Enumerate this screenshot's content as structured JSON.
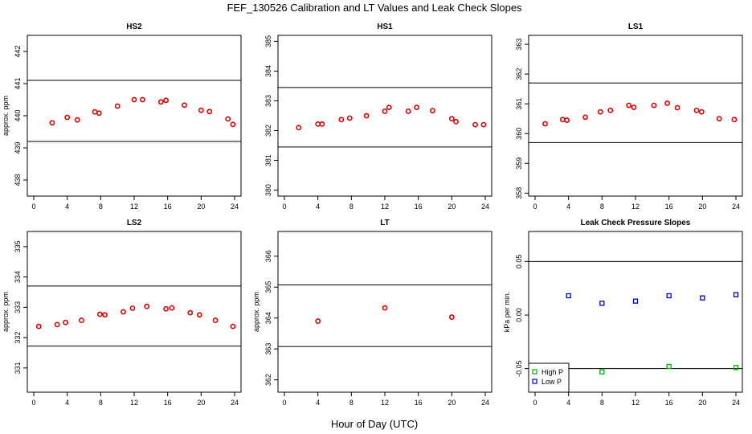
{
  "title": "FEF_130526  Calibration and LT Values and Leak Check Slopes",
  "xlabel": "Hour of Day (UTC)",
  "colors": {
    "point": "#e00000",
    "high_p": "#00b400",
    "low_p": "#0000cc",
    "axis": "#000000"
  },
  "chart_data": [
    {
      "type": "scatter",
      "title": "HS2",
      "ylabel": "approx. ppm",
      "xlim": [
        0,
        24
      ],
      "xticks": [
        0,
        4,
        8,
        12,
        16,
        20,
        24
      ],
      "ylim": [
        437.5,
        442.5
      ],
      "yticks": [
        438,
        439,
        440,
        441,
        442
      ],
      "hlines": [
        441.1,
        439.2
      ],
      "series": [
        {
          "x": [
            2.2,
            4.0,
            5.2,
            7.3,
            7.8,
            10.0,
            12.0,
            13.0,
            15.2,
            15.8,
            18.0,
            20.0,
            21.0,
            23.2,
            23.8
          ],
          "y": [
            439.78,
            439.95,
            439.87,
            440.12,
            440.08,
            440.3,
            440.5,
            440.5,
            440.43,
            440.48,
            440.33,
            440.17,
            440.13,
            439.9,
            439.73
          ]
        }
      ]
    },
    {
      "type": "scatter",
      "title": "HS1",
      "ylabel": "",
      "xlim": [
        0,
        24
      ],
      "xticks": [
        0,
        4,
        8,
        12,
        16,
        20,
        24
      ],
      "ylim": [
        379.8,
        385.2
      ],
      "yticks": [
        380,
        381,
        382,
        383,
        384,
        385
      ],
      "hlines": [
        383.45,
        381.45
      ],
      "series": [
        {
          "x": [
            1.7,
            4.0,
            4.5,
            6.8,
            7.8,
            9.8,
            12.0,
            12.5,
            14.8,
            15.8,
            17.7,
            20.0,
            20.5,
            22.8,
            23.8
          ],
          "y": [
            382.1,
            382.22,
            382.22,
            382.37,
            382.42,
            382.5,
            382.65,
            382.78,
            382.65,
            382.78,
            382.67,
            382.4,
            382.3,
            382.2,
            382.2
          ]
        }
      ]
    },
    {
      "type": "scatter",
      "title": "LS1",
      "ylabel": "",
      "xlim": [
        0,
        24
      ],
      "xticks": [
        0,
        4,
        8,
        12,
        16,
        20,
        24
      ],
      "ylim": [
        357.9,
        363.3
      ],
      "yticks": [
        358,
        359,
        360,
        361,
        362,
        363
      ],
      "hlines": [
        361.7,
        359.7
      ],
      "series": [
        {
          "x": [
            1.2,
            3.3,
            3.8,
            6.0,
            7.8,
            9.0,
            11.2,
            11.8,
            14.2,
            15.8,
            17.0,
            19.3,
            19.9,
            22.0,
            23.8
          ],
          "y": [
            360.33,
            360.47,
            360.45,
            360.55,
            360.73,
            360.78,
            360.95,
            360.88,
            360.95,
            361.02,
            360.87,
            360.78,
            360.73,
            360.5,
            360.47
          ]
        }
      ]
    },
    {
      "type": "scatter",
      "title": "LS2",
      "ylabel": "approx. ppm",
      "xlim": [
        0,
        24
      ],
      "xticks": [
        0,
        4,
        8,
        12,
        16,
        20,
        24
      ],
      "ylim": [
        330.2,
        335.5
      ],
      "yticks": [
        331,
        332,
        333,
        334,
        335
      ],
      "hlines": [
        333.7,
        331.72
      ],
      "series": [
        {
          "x": [
            0.6,
            2.8,
            3.8,
            5.7,
            7.9,
            8.5,
            10.7,
            11.8,
            13.5,
            15.8,
            16.5,
            18.7,
            19.8,
            21.7,
            23.8
          ],
          "y": [
            332.37,
            332.43,
            332.5,
            332.57,
            332.77,
            332.75,
            332.85,
            332.97,
            333.03,
            332.95,
            332.98,
            332.82,
            332.75,
            332.57,
            332.37
          ]
        }
      ]
    },
    {
      "type": "scatter",
      "title": "LT",
      "ylabel": "approx. ppm",
      "xlim": [
        0,
        24
      ],
      "xticks": [
        0,
        4,
        8,
        12,
        16,
        20,
        24
      ],
      "ylim": [
        361.6,
        366.8
      ],
      "yticks": [
        362,
        363,
        364,
        365,
        366
      ],
      "hlines": [
        365.07,
        363.08
      ],
      "series": [
        {
          "x": [
            4.0,
            12.0,
            20.0
          ],
          "y": [
            363.9,
            364.33,
            364.03
          ]
        }
      ]
    },
    {
      "type": "scatter",
      "title": "Leak Check Pressure Slopes",
      "ylabel": "kPa per min.",
      "xlim": [
        0,
        24
      ],
      "xticks": [
        0,
        4,
        8,
        12,
        16,
        20,
        24
      ],
      "ylim": [
        -0.072,
        0.078
      ],
      "yticks": [
        -0.05,
        0.0,
        0.05
      ],
      "ytick_labels": [
        "-0.05",
        "0.00",
        "0.05"
      ],
      "hlines": [
        0.05,
        -0.05
      ],
      "legend_position": "bottom-left",
      "series": [
        {
          "name": "High P",
          "color": "#00b400",
          "x": [
            8,
            16,
            24
          ],
          "y": [
            -0.053,
            -0.048,
            -0.049
          ]
        },
        {
          "name": "Low P",
          "color": "#0000cc",
          "x": [
            4,
            8,
            12,
            16,
            20,
            24
          ],
          "y": [
            0.018,
            0.011,
            0.013,
            0.018,
            0.016,
            0.019
          ]
        }
      ]
    }
  ]
}
